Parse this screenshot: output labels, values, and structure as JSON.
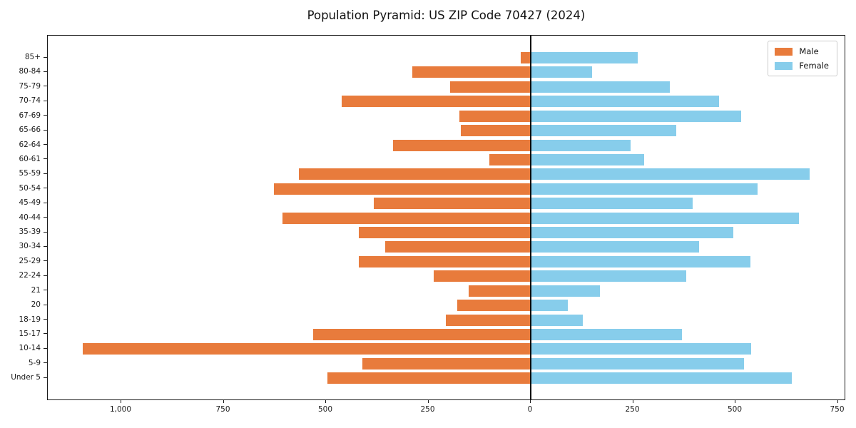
{
  "title": "Population Pyramid: US ZIP Code 70427 (2024)",
  "legend": {
    "items": [
      {
        "label": "Male",
        "color": "#e87b3c"
      },
      {
        "label": "Female",
        "color": "#87cdeb"
      }
    ]
  },
  "colors": {
    "male": "#e87b3c",
    "female": "#87cdeb",
    "axis": "#1a1a1a",
    "background": "#ffffff"
  },
  "chart_data": {
    "type": "bar",
    "subtype": "population-pyramid-horizontal",
    "title": "Population Pyramid: US ZIP Code 70427 (2024)",
    "categories": [
      "85+",
      "80-84",
      "75-79",
      "70-74",
      "67-69",
      "65-66",
      "62-64",
      "60-61",
      "55-59",
      "50-54",
      "45-49",
      "40-44",
      "35-39",
      "30-34",
      "25-29",
      "22-24",
      "21",
      "20",
      "18-19",
      "15-17",
      "10-14",
      "5-9",
      "Under 5"
    ],
    "series": [
      {
        "name": "Male",
        "side": "left",
        "color": "#e87b3c",
        "values": [
          25,
          289,
          197,
          462,
          174,
          170,
          337,
          101,
          566,
          628,
          384,
          606,
          419,
          355,
          419,
          237,
          152,
          180,
          207,
          531,
          1094,
          412,
          497
        ]
      },
      {
        "name": "Female",
        "side": "right",
        "color": "#87cdeb",
        "values": [
          261,
          149,
          340,
          460,
          514,
          355,
          244,
          277,
          682,
          554,
          395,
          655,
          495,
          412,
          536,
          380,
          169,
          90,
          127,
          370,
          538,
          521,
          638
        ]
      }
    ],
    "x_axis": {
      "tick_values": [
        -1000,
        -750,
        -500,
        -250,
        0,
        250,
        500,
        750
      ],
      "tick_labels": [
        "1,000",
        "750",
        "500",
        "250",
        "0",
        "250",
        "500",
        "750"
      ],
      "xlim": [
        -1180,
        770
      ]
    },
    "y_axis": {
      "label": ""
    },
    "grid": false,
    "zero_line": true,
    "legend_position": "upper-right"
  }
}
